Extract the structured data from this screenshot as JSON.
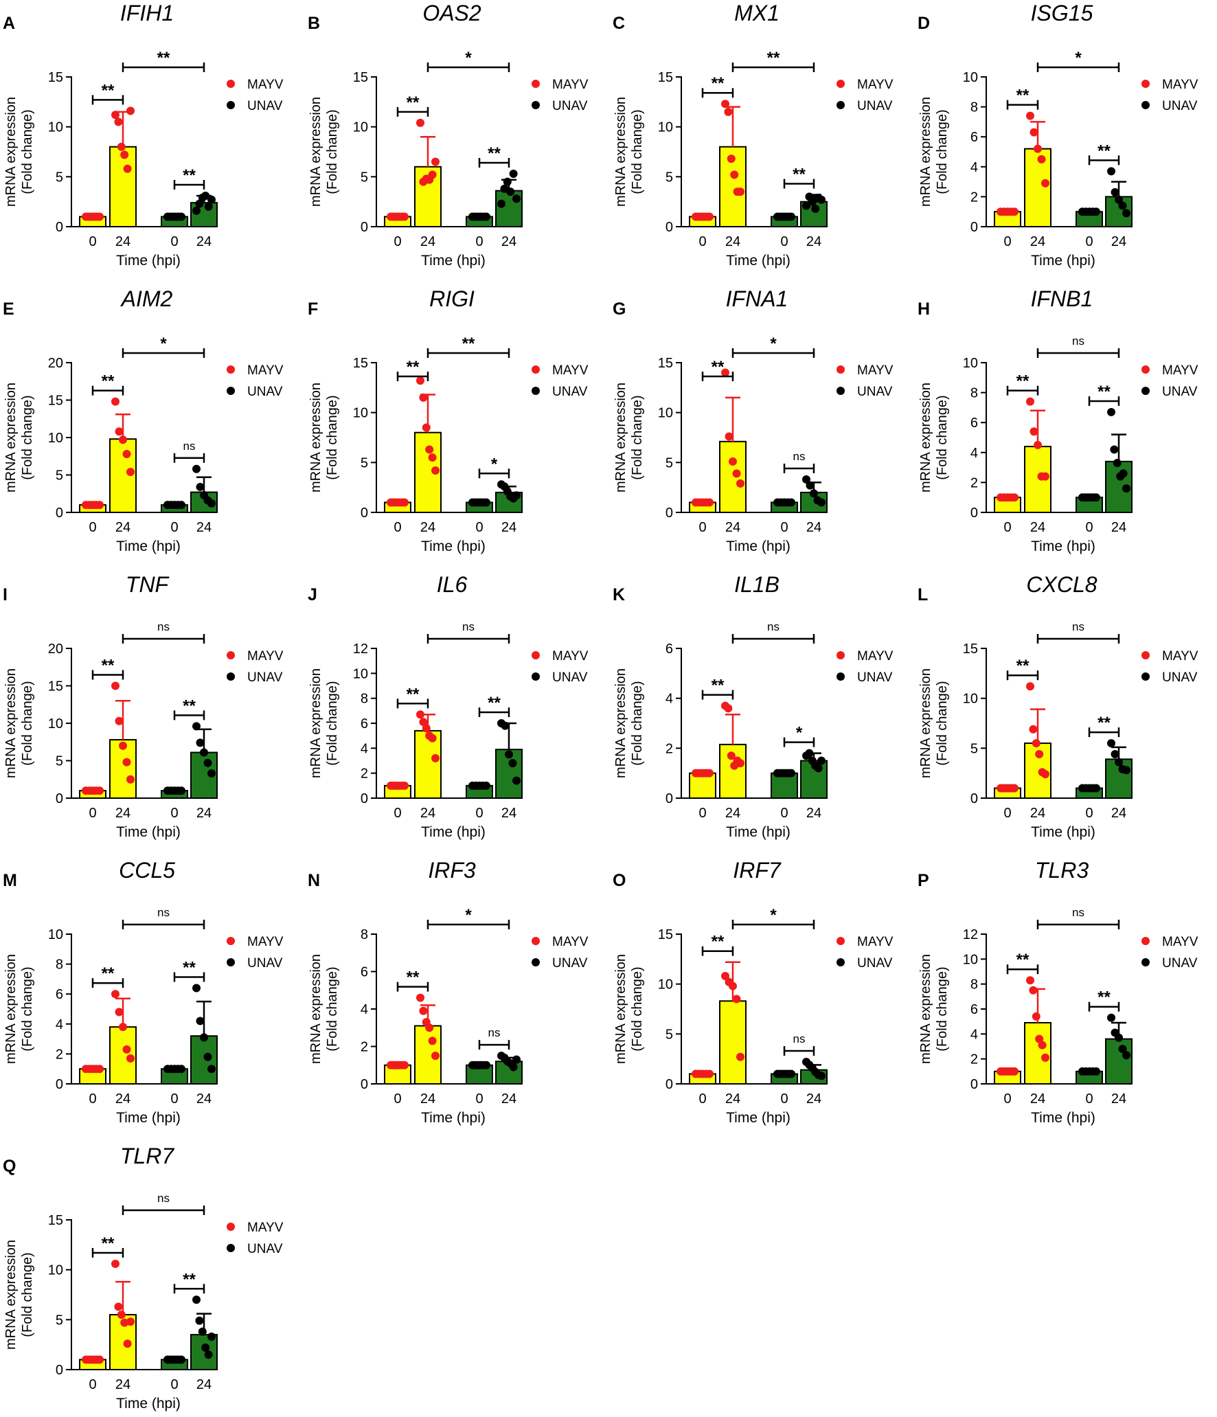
{
  "chart_data": {
    "type": "bar",
    "xlabel": "Time (hpi)",
    "ylabel": [
      "mRNA expression",
      "(Fold change)"
    ],
    "categories": [
      "0",
      "24",
      "0",
      "24"
    ],
    "legend": [
      {
        "name": "MAYV",
        "color": "#f01c1c"
      },
      {
        "name": "UNAV",
        "color": "#000000"
      }
    ],
    "bar_colors": [
      "#fcfc00",
      "#fcfc00",
      "#1f7a1f",
      "#1f7a1f"
    ],
    "dot_colors": [
      "#f01c1c",
      "#f01c1c",
      "#000000",
      "#000000"
    ],
    "panels": [
      {
        "letter": "A",
        "gene": "IFIH1",
        "ylim": [
          0,
          15
        ],
        "yticks": [
          0,
          5,
          10,
          15
        ],
        "means": [
          1,
          8,
          1,
          2.4
        ],
        "sds": [
          0,
          3.5,
          0,
          0.7
        ],
        "points": [
          [
            1,
            1,
            1,
            1,
            1,
            1
          ],
          [
            11.2,
            10.5,
            8,
            7.2,
            5.8,
            11.6
          ],
          [
            1,
            1,
            1,
            1,
            1,
            1
          ],
          [
            1.6,
            2.3,
            2.9,
            3.1,
            2.0,
            2.7
          ]
        ],
        "sig_within": [
          "**",
          "**"
        ],
        "sig_between": "**"
      },
      {
        "letter": "B",
        "gene": "OAS2",
        "ylim": [
          0,
          15
        ],
        "yticks": [
          0,
          5,
          10,
          15
        ],
        "means": [
          1,
          6,
          1,
          3.6
        ],
        "sds": [
          0,
          3,
          0,
          1.1
        ],
        "points": [
          [
            1,
            1,
            1,
            1,
            1,
            1
          ],
          [
            10.4,
            4.5,
            4.8,
            4.7,
            5.2,
            6.5
          ],
          [
            1,
            1,
            1,
            1,
            1,
            1
          ],
          [
            2.3,
            3.8,
            4.5,
            3.5,
            5.3,
            2.8
          ]
        ],
        "sig_within": [
          "**",
          "**"
        ],
        "sig_between": "*"
      },
      {
        "letter": "C",
        "gene": "MX1",
        "ylim": [
          0,
          15
        ],
        "yticks": [
          0,
          5,
          10,
          15
        ],
        "means": [
          1,
          8,
          1,
          2.5
        ],
        "sds": [
          0,
          4,
          0,
          0.7
        ],
        "points": [
          [
            1,
            1,
            1,
            1,
            1,
            1
          ],
          [
            12.3,
            11.5,
            6.8,
            5.2,
            3.5,
            3.5
          ],
          [
            1,
            1,
            1,
            1,
            1,
            1
          ],
          [
            2.1,
            3.0,
            2.5,
            1.8,
            2.9,
            2.7
          ]
        ],
        "sig_within": [
          "**",
          "**"
        ],
        "sig_between": "**"
      },
      {
        "letter": "D",
        "gene": "ISG15",
        "ylim": [
          0,
          10
        ],
        "yticks": [
          0,
          2,
          4,
          6,
          8,
          10
        ],
        "means": [
          1,
          5.2,
          1,
          2
        ],
        "sds": [
          0,
          1.8,
          0,
          1
        ],
        "points": [
          [
            1,
            1,
            1,
            1,
            1
          ],
          [
            7.4,
            6.3,
            5.2,
            4.5,
            2.9
          ],
          [
            1,
            1,
            1,
            1,
            1
          ],
          [
            3.7,
            2.3,
            1.8,
            1.4,
            0.9
          ]
        ],
        "sig_within": [
          "**",
          "**"
        ],
        "sig_between": "*"
      },
      {
        "letter": "E",
        "gene": "AIM2",
        "ylim": [
          0,
          20
        ],
        "yticks": [
          0,
          5,
          10,
          15,
          20
        ],
        "means": [
          1,
          9.8,
          1,
          2.7
        ],
        "sds": [
          0,
          3.3,
          0,
          2
        ],
        "points": [
          [
            1,
            1,
            1,
            1,
            1
          ],
          [
            14.8,
            10.8,
            9.7,
            7.8,
            5.4
          ],
          [
            1,
            1,
            1,
            1,
            1
          ],
          [
            5.8,
            3.4,
            2.3,
            1.6,
            1.2
          ]
        ],
        "sig_within": [
          "**",
          "ns"
        ],
        "sig_between": "*"
      },
      {
        "letter": "F",
        "gene": "RIGI",
        "ylim": [
          0,
          15
        ],
        "yticks": [
          0,
          5,
          10,
          15
        ],
        "means": [
          1,
          8,
          1,
          2
        ],
        "sds": [
          0,
          3.8,
          0,
          0.6
        ],
        "points": [
          [
            1,
            1,
            1,
            1,
            1,
            1
          ],
          [
            13.2,
            11.5,
            8.5,
            6.3,
            5.5,
            4.2
          ],
          [
            1,
            1,
            1,
            1,
            1,
            1
          ],
          [
            2.8,
            2.6,
            2.1,
            1.6,
            1.4,
            1.7
          ]
        ],
        "sig_within": [
          "**",
          "*"
        ],
        "sig_between": "**"
      },
      {
        "letter": "G",
        "gene": "IFNA1",
        "ylim": [
          0,
          15
        ],
        "yticks": [
          0,
          5,
          10,
          15
        ],
        "means": [
          1,
          7.1,
          1,
          2
        ],
        "sds": [
          0,
          4.4,
          0,
          1
        ],
        "points": [
          [
            1,
            1,
            1,
            1,
            1
          ],
          [
            14,
            7.6,
            5.1,
            3.9,
            2.9
          ],
          [
            1,
            1,
            1,
            1,
            1
          ],
          [
            3.3,
            2.7,
            1.9,
            1.2,
            1.0
          ]
        ],
        "sig_within": [
          "**",
          "ns"
        ],
        "sig_between": "*"
      },
      {
        "letter": "H",
        "gene": "IFNB1",
        "ylim": [
          0,
          10
        ],
        "yticks": [
          0,
          2,
          4,
          6,
          8,
          10
        ],
        "means": [
          1,
          4.4,
          1,
          3.4
        ],
        "sds": [
          0,
          2.4,
          0,
          1.8
        ],
        "points": [
          [
            1,
            1,
            1,
            1,
            1
          ],
          [
            7.4,
            5.4,
            4.5,
            2.4,
            2.4
          ],
          [
            1,
            1,
            1,
            1,
            1,
            1
          ],
          [
            6.7,
            4.2,
            3.3,
            2.4,
            2.6,
            1.6
          ]
        ],
        "sig_within": [
          "**",
          "**"
        ],
        "sig_between": "ns"
      },
      {
        "letter": "I",
        "gene": "TNF",
        "ylim": [
          0,
          20
        ],
        "yticks": [
          0,
          5,
          10,
          15,
          20
        ],
        "means": [
          1,
          7.8,
          1,
          6.1
        ],
        "sds": [
          0,
          5.2,
          0,
          3.1
        ],
        "points": [
          [
            1,
            1,
            1,
            1,
            1
          ],
          [
            15,
            10.3,
            7,
            4.8,
            2.5
          ],
          [
            1,
            1,
            1,
            1,
            1
          ],
          [
            9.6,
            7.4,
            6.1,
            4.7,
            3.3
          ]
        ],
        "sig_within": [
          "**",
          "**"
        ],
        "sig_between": "ns"
      },
      {
        "letter": "J",
        "gene": "IL6",
        "ylim": [
          0,
          12
        ],
        "yticks": [
          0,
          2,
          4,
          6,
          8,
          10,
          12
        ],
        "means": [
          1,
          5.4,
          1,
          3.9
        ],
        "sds": [
          0,
          1.3,
          0,
          2.1
        ],
        "points": [
          [
            1,
            1,
            1,
            1,
            1,
            1
          ],
          [
            6.7,
            6.1,
            5.6,
            5.0,
            4.8,
            3.2
          ],
          [
            1,
            1,
            1,
            1,
            1
          ],
          [
            6.0,
            5.8,
            3.5,
            2.8,
            1.4
          ]
        ],
        "sig_within": [
          "**",
          "**"
        ],
        "sig_between": "ns"
      },
      {
        "letter": "K",
        "gene": "IL1B",
        "ylim": [
          0,
          6
        ],
        "yticks": [
          0,
          2,
          4,
          6
        ],
        "means": [
          1,
          2.15,
          1,
          1.5
        ],
        "sds": [
          0,
          1.2,
          0,
          0.3
        ],
        "points": [
          [
            1,
            1,
            1,
            1,
            1,
            1
          ],
          [
            3.7,
            3.6,
            1.7,
            1.3,
            1.5,
            1.4
          ],
          [
            1,
            1,
            1,
            1,
            1,
            1
          ],
          [
            1.7,
            1.8,
            1.5,
            1.3,
            1.2,
            1.5
          ]
        ],
        "sig_within": [
          "**",
          "*"
        ],
        "sig_between": "ns"
      },
      {
        "letter": "L",
        "gene": "CXCL8",
        "ylim": [
          0,
          15
        ],
        "yticks": [
          0,
          5,
          10,
          15
        ],
        "means": [
          1,
          5.5,
          1,
          3.9
        ],
        "sds": [
          0,
          3.4,
          0,
          1.2
        ],
        "points": [
          [
            1,
            1,
            1,
            1,
            1,
            1
          ],
          [
            11.2,
            6.9,
            5.5,
            4.4,
            2.6,
            2.4
          ],
          [
            1,
            1,
            1,
            1,
            1
          ],
          [
            5.5,
            4.4,
            3.6,
            2.9,
            2.8
          ]
        ],
        "sig_within": [
          "**",
          "**"
        ],
        "sig_between": "ns"
      },
      {
        "letter": "M",
        "gene": "CCL5",
        "ylim": [
          0,
          10
        ],
        "yticks": [
          0,
          2,
          4,
          6,
          8,
          10
        ],
        "means": [
          1,
          3.8,
          1,
          3.2
        ],
        "sds": [
          0,
          1.9,
          0,
          2.3
        ],
        "points": [
          [
            1,
            1,
            1,
            1,
            1
          ],
          [
            6,
            4.8,
            3.8,
            2.3,
            1.7
          ],
          [
            1,
            1,
            1,
            1,
            1
          ],
          [
            6.4,
            4.2,
            3.1,
            1.8,
            1.0
          ]
        ],
        "sig_within": [
          "**",
          "**"
        ],
        "sig_between": "ns"
      },
      {
        "letter": "N",
        "gene": "IRF3",
        "ylim": [
          0,
          8
        ],
        "yticks": [
          0,
          2,
          4,
          6,
          8
        ],
        "means": [
          1,
          3.1,
          1,
          1.2
        ],
        "sds": [
          0,
          1.1,
          0,
          0.2
        ],
        "points": [
          [
            1,
            1,
            1,
            1,
            1,
            1
          ],
          [
            4.6,
            3.9,
            3.3,
            3.0,
            2.3,
            1.5
          ],
          [
            1,
            1,
            1,
            1,
            1,
            1
          ],
          [
            1.5,
            1.4,
            1.2,
            1.1,
            0.9,
            1.3
          ]
        ],
        "sig_within": [
          "**",
          "ns"
        ],
        "sig_between": "*"
      },
      {
        "letter": "O",
        "gene": "IRF7",
        "ylim": [
          0,
          15
        ],
        "yticks": [
          0,
          5,
          10,
          15
        ],
        "means": [
          1,
          8.3,
          1,
          1.4
        ],
        "sds": [
          0,
          3.9,
          0,
          0.5
        ],
        "points": [
          [
            1,
            1,
            1,
            1,
            1
          ],
          [
            10.8,
            10.2,
            9.8,
            8.5,
            2.7
          ],
          [
            1,
            1,
            1,
            1,
            1,
            1
          ],
          [
            2.2,
            1.9,
            1.6,
            1.2,
            0.9,
            0.8
          ]
        ],
        "sig_within": [
          "**",
          "ns"
        ],
        "sig_between": "*"
      },
      {
        "letter": "P",
        "gene": "TLR3",
        "ylim": [
          0,
          12
        ],
        "yticks": [
          0,
          2,
          4,
          6,
          8,
          10,
          12
        ],
        "means": [
          1,
          4.9,
          1,
          3.6
        ],
        "sds": [
          0,
          2.7,
          0,
          1.3
        ],
        "points": [
          [
            1,
            1,
            1,
            1,
            1,
            1
          ],
          [
            8.3,
            7.5,
            5.4,
            3.6,
            3.1,
            2.1
          ],
          [
            1,
            1,
            1,
            1,
            1
          ],
          [
            5.3,
            4.1,
            3.7,
            2.8,
            2.3
          ]
        ],
        "sig_within": [
          "**",
          "**"
        ],
        "sig_between": "ns"
      },
      {
        "letter": "Q",
        "gene": "TLR7",
        "ylim": [
          0,
          15
        ],
        "yticks": [
          0,
          5,
          10,
          15
        ],
        "means": [
          1,
          5.5,
          1,
          3.5
        ],
        "sds": [
          0,
          3.3,
          0,
          2.1
        ],
        "points": [
          [
            1,
            1,
            1,
            1,
            1,
            1
          ],
          [
            10.6,
            6.3,
            5.5,
            4.7,
            2.6,
            4.8
          ],
          [
            1,
            1,
            1,
            1,
            1,
            1
          ],
          [
            7.0,
            4.9,
            3.8,
            2.2,
            1.5,
            3.3
          ]
        ],
        "sig_within": [
          "**",
          "**"
        ],
        "sig_between": "ns"
      }
    ]
  }
}
